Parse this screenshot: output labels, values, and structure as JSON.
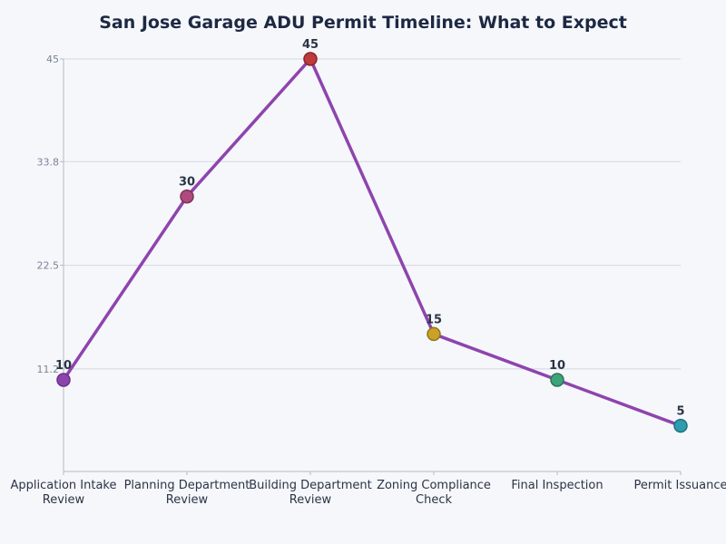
{
  "chart_data": {
    "type": "line",
    "title": "San Jose Garage ADU Permit Timeline: What to Expect",
    "xlabel": "",
    "ylabel": "",
    "categories": [
      [
        "Application Intake",
        "Review"
      ],
      [
        "Planning Department",
        "Review"
      ],
      [
        "Building Department",
        "Review"
      ],
      [
        "Zoning Compliance",
        "Check"
      ],
      [
        "Final Inspection"
      ],
      [
        "Permit Issuance"
      ]
    ],
    "series": [
      {
        "values": [
          10,
          30,
          45,
          15,
          10,
          5
        ]
      }
    ],
    "yticks": [
      11.2,
      22.5,
      33.8,
      45
    ],
    "ylim": [
      0,
      45
    ],
    "grid": true,
    "line_color": "#8e44ad",
    "marker_colors": [
      "#8e44ad",
      "#b04a7e",
      "#c0393b",
      "#c9a227",
      "#3ea37a",
      "#2d9cae"
    ],
    "marker_edge_colors": [
      "#6c2f86",
      "#7e3058",
      "#8a2626",
      "#8f7419",
      "#2a7557",
      "#1f6f7c"
    ]
  }
}
